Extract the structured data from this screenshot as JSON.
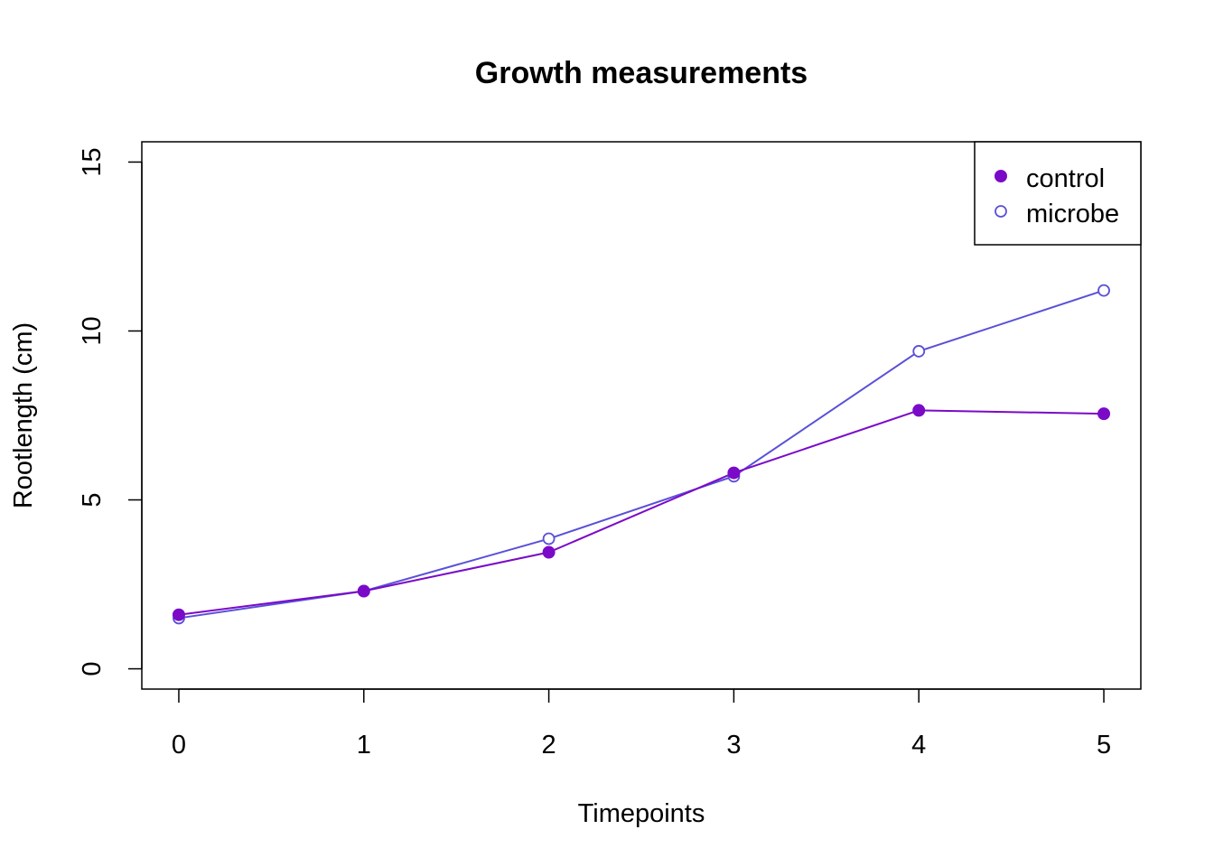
{
  "chart_data": {
    "type": "line",
    "title": "Growth measurements",
    "xlabel": "Timepoints",
    "ylabel": "Rootlength (cm)",
    "x": [
      0,
      1,
      2,
      3,
      4,
      5
    ],
    "xlim": [
      -0.2,
      5.2
    ],
    "ylim": [
      -0.6,
      15.6
    ],
    "xticks": [
      0,
      1,
      2,
      3,
      4,
      5
    ],
    "yticks": [
      0,
      5,
      10,
      15
    ],
    "grid": false,
    "legend": "top-right",
    "series": [
      {
        "name": "control",
        "values": [
          1.6,
          2.3,
          3.45,
          5.8,
          7.65,
          7.55
        ],
        "color": "#7a0ac8",
        "marker": "filled-circle"
      },
      {
        "name": "microbe",
        "values": [
          1.5,
          2.3,
          3.85,
          5.7,
          9.4,
          11.2
        ],
        "color": "#5a50d8",
        "marker": "open-circle"
      }
    ]
  }
}
